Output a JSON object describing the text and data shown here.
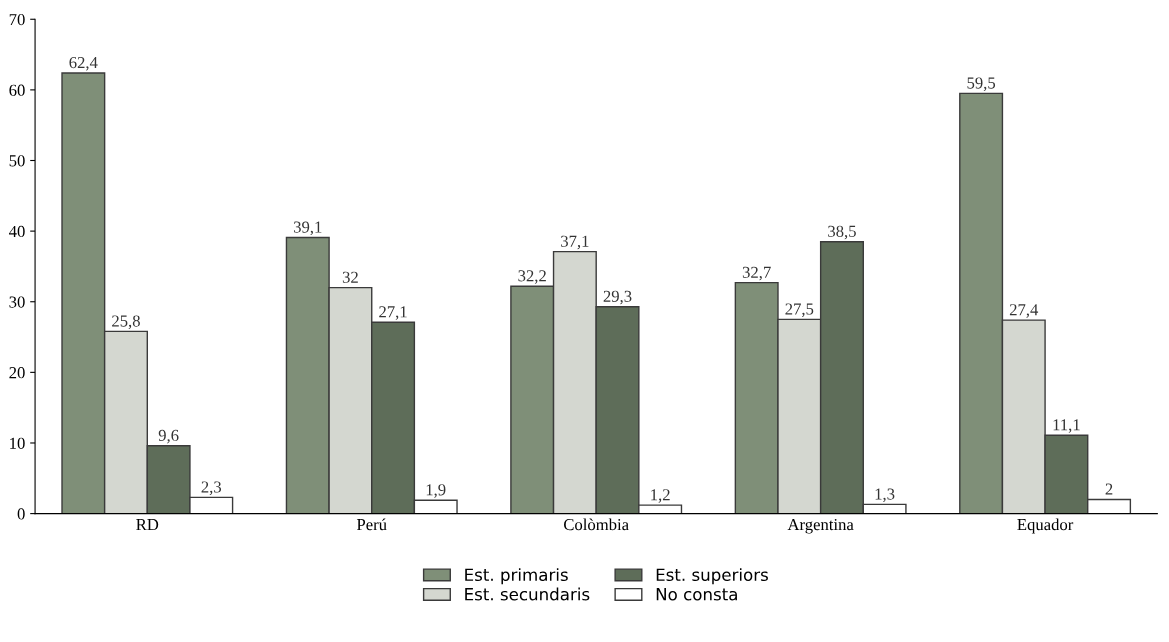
{
  "chart_data": {
    "type": "bar",
    "categories": [
      "RD",
      "Perú",
      "Colòmbia",
      "Argentina",
      "Equador"
    ],
    "series": [
      {
        "name": "Est. primaris",
        "color": "#7f8f78",
        "values": [
          62.4,
          39.1,
          32.2,
          32.7,
          59.5
        ],
        "value_labels": [
          "62,4",
          "39,1",
          "32,2",
          "32,7",
          "59,5"
        ]
      },
      {
        "name": "Est. secundaris",
        "color": "#d4d7d0",
        "values": [
          25.8,
          32,
          37.1,
          27.5,
          27.4
        ],
        "value_labels": [
          "25,8",
          "32",
          "37,1",
          "27,5",
          "27,4"
        ]
      },
      {
        "name": "Est. superiors",
        "color": "#5e6d59",
        "values": [
          9.6,
          27.1,
          29.3,
          38.5,
          11.1
        ],
        "value_labels": [
          "9,6",
          "27,1",
          "29,3",
          "38,5",
          "11,1"
        ]
      },
      {
        "name": "No consta",
        "color": "#ffffff",
        "values": [
          2.3,
          1.9,
          1.2,
          1.3,
          2
        ],
        "value_labels": [
          "2,3",
          "1,9",
          "1,2",
          "1,3",
          "2"
        ]
      }
    ],
    "ylim": [
      0,
      70
    ],
    "yticks": [
      0,
      10,
      20,
      30,
      40,
      50,
      60,
      70
    ],
    "grid": false,
    "legend": "bottom"
  }
}
